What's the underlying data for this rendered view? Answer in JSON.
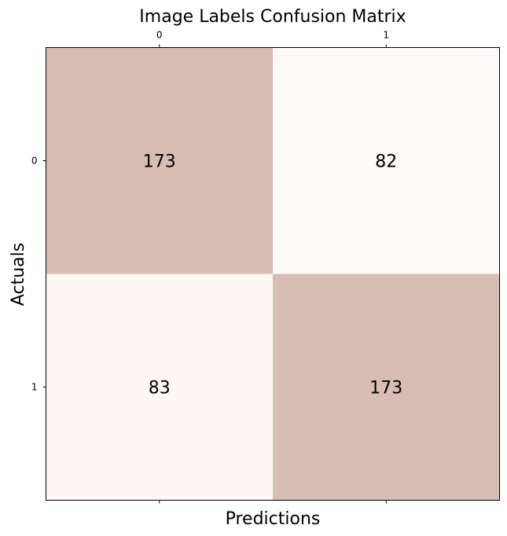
{
  "chart_data": {
    "type": "heatmap",
    "title": "Image Labels Confusion Matrix",
    "xlabel": "Predictions",
    "ylabel": "Actuals",
    "x_categories": [
      "0",
      "1"
    ],
    "y_categories": [
      "0",
      "1"
    ],
    "matrix": [
      [
        173,
        82
      ],
      [
        83,
        173
      ]
    ],
    "color_low": "#fdf9f7",
    "color_high": "#d8bdb4",
    "grid": false
  }
}
